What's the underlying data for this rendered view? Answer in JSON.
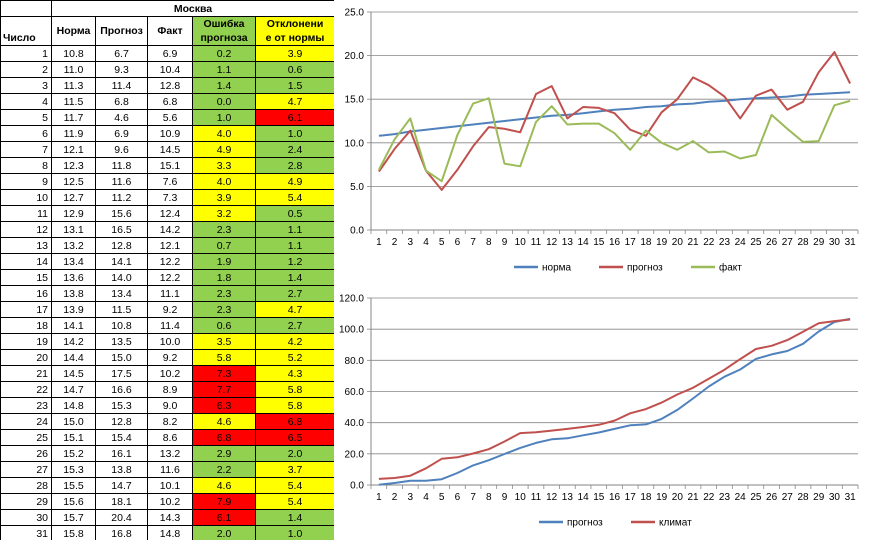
{
  "table": {
    "city": "Москва",
    "headers": {
      "day": "Число",
      "norm": "Норма",
      "forecast": "Прогноз",
      "fact": "Факт",
      "err_line1": "Ошибка",
      "err_line2": "прогноза",
      "dev_line1": "Отклонени",
      "dev_line2": "е от нормы"
    },
    "rows": [
      {
        "day": "1",
        "norm": "10.8",
        "forecast": "6.7",
        "fact": "6.9",
        "err": "0.2",
        "err_color": "#92d050",
        "dev": "3.9",
        "dev_color": "#ffff00"
      },
      {
        "day": "2",
        "norm": "11.0",
        "forecast": "9.3",
        "fact": "10.4",
        "err": "1.1",
        "err_color": "#92d050",
        "dev": "0.6",
        "dev_color": "#92d050"
      },
      {
        "day": "3",
        "norm": "11.3",
        "forecast": "11.4",
        "fact": "12.8",
        "err": "1.4",
        "err_color": "#92d050",
        "dev": "1.5",
        "dev_color": "#92d050"
      },
      {
        "day": "4",
        "norm": "11.5",
        "forecast": "6.8",
        "fact": "6.8",
        "err": "0.0",
        "err_color": "#92d050",
        "dev": "4.7",
        "dev_color": "#ffff00"
      },
      {
        "day": "5",
        "norm": "11.7",
        "forecast": "4.6",
        "fact": "5.6",
        "err": "1.0",
        "err_color": "#92d050",
        "dev": "6.1",
        "dev_color": "#ff0000"
      },
      {
        "day": "6",
        "norm": "11.9",
        "forecast": "6.9",
        "fact": "10.9",
        "err": "4.0",
        "err_color": "#ffff00",
        "dev": "1.0",
        "dev_color": "#92d050"
      },
      {
        "day": "7",
        "norm": "12.1",
        "forecast": "9.6",
        "fact": "14.5",
        "err": "4.9",
        "err_color": "#ffff00",
        "dev": "2.4",
        "dev_color": "#92d050"
      },
      {
        "day": "8",
        "norm": "12.3",
        "forecast": "11.8",
        "fact": "15.1",
        "err": "3.3",
        "err_color": "#ffff00",
        "dev": "2.8",
        "dev_color": "#92d050"
      },
      {
        "day": "9",
        "norm": "12.5",
        "forecast": "11.6",
        "fact": "7.6",
        "err": "4.0",
        "err_color": "#ffff00",
        "dev": "4.9",
        "dev_color": "#ffff00"
      },
      {
        "day": "10",
        "norm": "12.7",
        "forecast": "11.2",
        "fact": "7.3",
        "err": "3.9",
        "err_color": "#ffff00",
        "dev": "5.4",
        "dev_color": "#ffff00"
      },
      {
        "day": "11",
        "norm": "12.9",
        "forecast": "15.6",
        "fact": "12.4",
        "err": "3.2",
        "err_color": "#ffff00",
        "dev": "0.5",
        "dev_color": "#92d050"
      },
      {
        "day": "12",
        "norm": "13.1",
        "forecast": "16.5",
        "fact": "14.2",
        "err": "2.3",
        "err_color": "#92d050",
        "dev": "1.1",
        "dev_color": "#92d050"
      },
      {
        "day": "13",
        "norm": "13.2",
        "forecast": "12.8",
        "fact": "12.1",
        "err": "0.7",
        "err_color": "#92d050",
        "dev": "1.1",
        "dev_color": "#92d050"
      },
      {
        "day": "14",
        "norm": "13.4",
        "forecast": "14.1",
        "fact": "12.2",
        "err": "1.9",
        "err_color": "#92d050",
        "dev": "1.2",
        "dev_color": "#92d050"
      },
      {
        "day": "15",
        "norm": "13.6",
        "forecast": "14.0",
        "fact": "12.2",
        "err": "1.8",
        "err_color": "#92d050",
        "dev": "1.4",
        "dev_color": "#92d050"
      },
      {
        "day": "16",
        "norm": "13.8",
        "forecast": "13.4",
        "fact": "11.1",
        "err": "2.3",
        "err_color": "#92d050",
        "dev": "2.7",
        "dev_color": "#92d050"
      },
      {
        "day": "17",
        "norm": "13.9",
        "forecast": "11.5",
        "fact": "9.2",
        "err": "2.3",
        "err_color": "#92d050",
        "dev": "4.7",
        "dev_color": "#ffff00"
      },
      {
        "day": "18",
        "norm": "14.1",
        "forecast": "10.8",
        "fact": "11.4",
        "err": "0.6",
        "err_color": "#92d050",
        "dev": "2.7",
        "dev_color": "#92d050"
      },
      {
        "day": "19",
        "norm": "14.2",
        "forecast": "13.5",
        "fact": "10.0",
        "err": "3.5",
        "err_color": "#ffff00",
        "dev": "4.2",
        "dev_color": "#ffff00"
      },
      {
        "day": "20",
        "norm": "14.4",
        "forecast": "15.0",
        "fact": "9.2",
        "err": "5.8",
        "err_color": "#ffff00",
        "dev": "5.2",
        "dev_color": "#ffff00"
      },
      {
        "day": "21",
        "norm": "14.5",
        "forecast": "17.5",
        "fact": "10.2",
        "err": "7.3",
        "err_color": "#ff0000",
        "dev": "4.3",
        "dev_color": "#ffff00"
      },
      {
        "day": "22",
        "norm": "14.7",
        "forecast": "16.6",
        "fact": "8.9",
        "err": "7.7",
        "err_color": "#ff0000",
        "dev": "5.8",
        "dev_color": "#ffff00"
      },
      {
        "day": "23",
        "norm": "14.8",
        "forecast": "15.3",
        "fact": "9.0",
        "err": "6.3",
        "err_color": "#ff0000",
        "dev": "5.8",
        "dev_color": "#ffff00"
      },
      {
        "day": "24",
        "norm": "15.0",
        "forecast": "12.8",
        "fact": "8.2",
        "err": "4.6",
        "err_color": "#ffff00",
        "dev": "6.8",
        "dev_color": "#ff0000"
      },
      {
        "day": "25",
        "norm": "15.1",
        "forecast": "15.4",
        "fact": "8.6",
        "err": "6.8",
        "err_color": "#ff0000",
        "dev": "6.5",
        "dev_color": "#ff0000"
      },
      {
        "day": "26",
        "norm": "15.2",
        "forecast": "16.1",
        "fact": "13.2",
        "err": "2.9",
        "err_color": "#92d050",
        "dev": "2.0",
        "dev_color": "#92d050"
      },
      {
        "day": "27",
        "norm": "15.3",
        "forecast": "13.8",
        "fact": "11.6",
        "err": "2.2",
        "err_color": "#92d050",
        "dev": "3.7",
        "dev_color": "#ffff00"
      },
      {
        "day": "28",
        "norm": "15.5",
        "forecast": "14.7",
        "fact": "10.1",
        "err": "4.6",
        "err_color": "#ffff00",
        "dev": "5.4",
        "dev_color": "#ffff00"
      },
      {
        "day": "29",
        "norm": "15.6",
        "forecast": "18.1",
        "fact": "10.2",
        "err": "7.9",
        "err_color": "#ff0000",
        "dev": "5.4",
        "dev_color": "#ffff00"
      },
      {
        "day": "30",
        "norm": "15.7",
        "forecast": "20.4",
        "fact": "14.3",
        "err": "6.1",
        "err_color": "#ff0000",
        "dev": "1.4",
        "dev_color": "#92d050"
      },
      {
        "day": "31",
        "norm": "15.8",
        "forecast": "16.8",
        "fact": "14.8",
        "err": "2.0",
        "err_color": "#92d050",
        "dev": "1.0",
        "dev_color": "#92d050"
      }
    ]
  },
  "chart_data": [
    {
      "type": "line",
      "x": [
        1,
        2,
        3,
        4,
        5,
        6,
        7,
        8,
        9,
        10,
        11,
        12,
        13,
        14,
        15,
        16,
        17,
        18,
        19,
        20,
        21,
        22,
        23,
        24,
        25,
        26,
        27,
        28,
        29,
        30,
        31
      ],
      "ylim": [
        0,
        25
      ],
      "yticks": [
        "0.0",
        "5.0",
        "10.0",
        "15.0",
        "20.0",
        "25.0"
      ],
      "grid": true,
      "legend": "bottom",
      "series": [
        {
          "name": "норма",
          "color": "#4f81bd",
          "values": [
            10.8,
            11.0,
            11.3,
            11.5,
            11.7,
            11.9,
            12.1,
            12.3,
            12.5,
            12.7,
            12.9,
            13.1,
            13.2,
            13.4,
            13.6,
            13.8,
            13.9,
            14.1,
            14.2,
            14.4,
            14.5,
            14.7,
            14.8,
            15.0,
            15.1,
            15.2,
            15.3,
            15.5,
            15.6,
            15.7,
            15.8
          ]
        },
        {
          "name": "прогноз",
          "color": "#c0504d",
          "values": [
            6.7,
            9.3,
            11.4,
            6.8,
            4.6,
            6.9,
            9.6,
            11.8,
            11.6,
            11.2,
            15.6,
            16.5,
            12.8,
            14.1,
            14.0,
            13.4,
            11.5,
            10.8,
            13.5,
            15.0,
            17.5,
            16.6,
            15.3,
            12.8,
            15.4,
            16.1,
            13.8,
            14.7,
            18.1,
            20.4,
            16.8
          ]
        },
        {
          "name": "факт",
          "color": "#9bbb59",
          "values": [
            6.9,
            10.4,
            12.8,
            6.8,
            5.6,
            10.9,
            14.5,
            15.1,
            7.6,
            7.3,
            12.4,
            14.2,
            12.1,
            12.2,
            12.2,
            11.1,
            9.2,
            11.4,
            10.0,
            9.2,
            10.2,
            8.9,
            9.0,
            8.2,
            8.6,
            13.2,
            11.6,
            10.1,
            10.2,
            14.3,
            14.8
          ]
        }
      ]
    },
    {
      "type": "line",
      "x": [
        1,
        2,
        3,
        4,
        5,
        6,
        7,
        8,
        9,
        10,
        11,
        12,
        13,
        14,
        15,
        16,
        17,
        18,
        19,
        20,
        21,
        22,
        23,
        24,
        25,
        26,
        27,
        28,
        29,
        30,
        31
      ],
      "ylim": [
        0,
        120
      ],
      "yticks": [
        "0.0",
        "20.0",
        "40.0",
        "60.0",
        "80.0",
        "100.0",
        "120.0"
      ],
      "grid": true,
      "legend": "bottom",
      "series": [
        {
          "name": "прогноз",
          "color": "#4f81bd",
          "values": [
            0.2,
            1.3,
            2.7,
            2.7,
            3.7,
            7.7,
            12.6,
            15.9,
            19.9,
            23.8,
            27.0,
            29.3,
            30.0,
            31.9,
            33.7,
            36.0,
            38.3,
            38.9,
            42.4,
            48.2,
            55.5,
            63.2,
            69.5,
            74.1,
            80.9,
            83.8,
            86.0,
            90.6,
            98.5,
            104.6,
            106.6
          ]
        },
        {
          "name": "климат",
          "color": "#c0504d",
          "values": [
            3.9,
            4.5,
            6.0,
            10.7,
            16.8,
            17.8,
            20.2,
            23.0,
            27.9,
            33.3,
            33.8,
            34.9,
            36.0,
            37.2,
            38.6,
            41.3,
            46.0,
            48.7,
            52.9,
            58.1,
            62.4,
            68.2,
            74.0,
            80.8,
            87.3,
            89.3,
            93.0,
            98.4,
            103.8,
            105.2,
            106.2
          ]
        }
      ]
    }
  ]
}
